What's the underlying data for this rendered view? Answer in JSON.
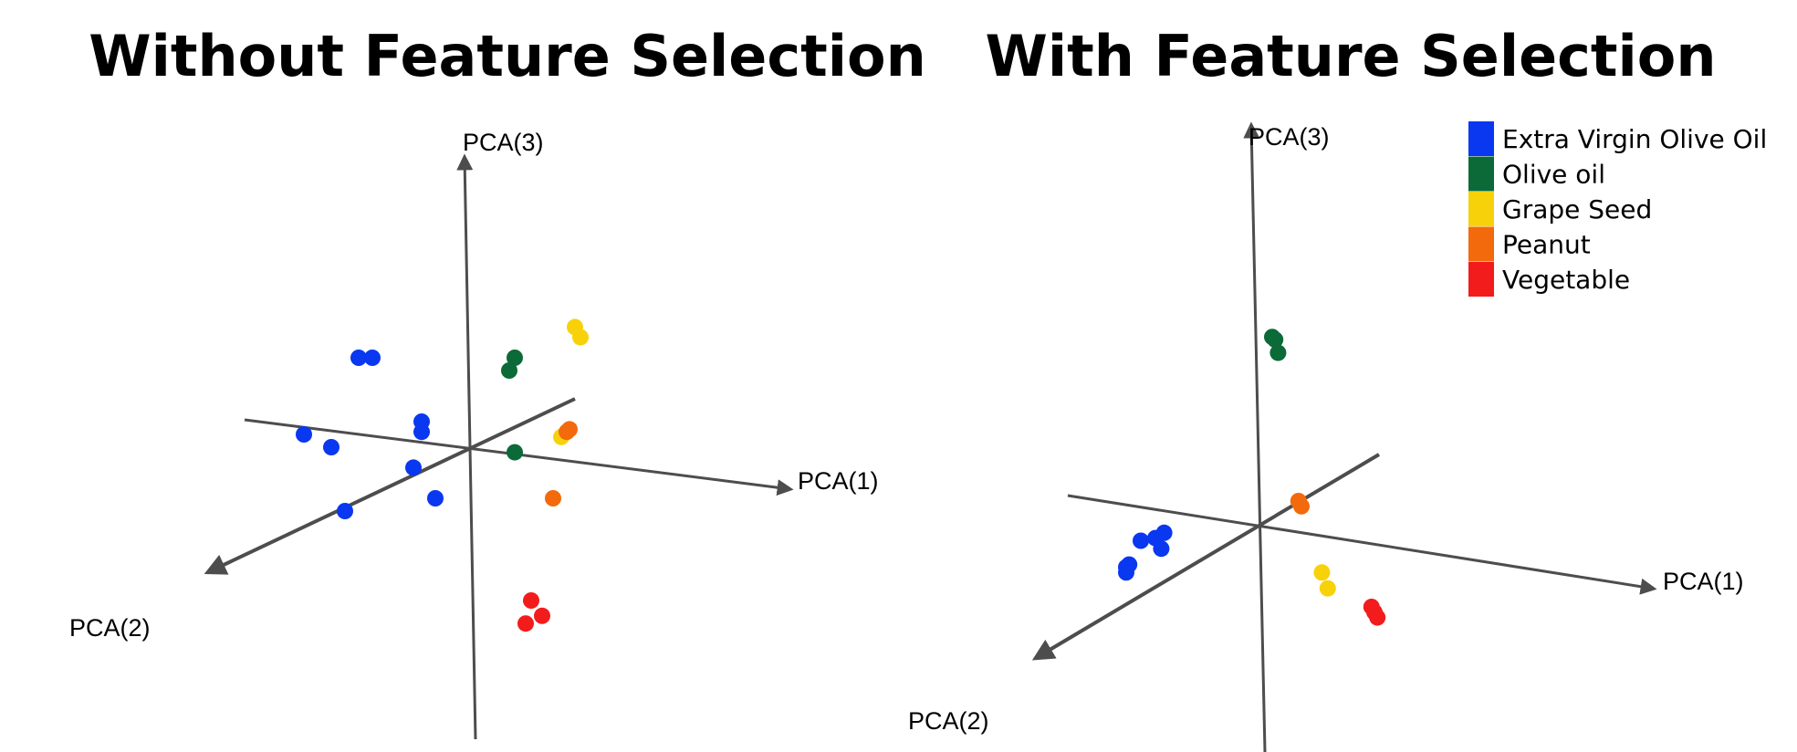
{
  "colors": {
    "Extra Virgin Olive Oil": "#0a37f0",
    "Olive oil": "#0b6a37",
    "Grape Seed": "#f7d20a",
    "Peanut": "#f26a0c",
    "Vegetable": "#f21c1c",
    "axis": "#4d4d4d"
  },
  "legend": [
    "Extra Virgin Olive Oil",
    "Olive oil",
    "Grape Seed",
    "Peanut",
    "Vegetable"
  ],
  "chart_data": [
    {
      "type": "scatter",
      "title": "Without Feature Selection",
      "axis_labels": [
        "PCA(1)",
        "PCA(2)",
        "PCA(3)"
      ],
      "series": [
        {
          "name": "Extra Virgin Olive Oil",
          "x": [
            -0.4,
            -0.35,
            -0.6,
            -0.5,
            -0.17,
            -0.17,
            -0.2,
            -0.45,
            -0.12
          ],
          "y": [
            0.35,
            0.35,
            0.05,
            0.0,
            0.1,
            0.06,
            -0.08,
            -0.25,
            -0.2
          ]
        },
        {
          "name": "Olive oil",
          "x": [
            0.17,
            0.15,
            0.17
          ],
          "y": [
            0.35,
            0.3,
            -0.02
          ]
        },
        {
          "name": "Grape Seed",
          "x": [
            0.39,
            0.41,
            0.34
          ],
          "y": [
            0.47,
            0.43,
            0.04
          ]
        },
        {
          "name": "Peanut",
          "x": [
            0.37,
            0.36,
            0.31
          ],
          "y": [
            0.07,
            0.06,
            -0.2
          ]
        },
        {
          "name": "Vegetable",
          "x": [
            0.23,
            0.27,
            0.21
          ],
          "y": [
            -0.6,
            -0.66,
            -0.69
          ]
        }
      ]
    },
    {
      "type": "scatter",
      "title": "With Feature Selection",
      "axis_labels": [
        "PCA(1)",
        "PCA(2)",
        "PCA(3)"
      ],
      "series": [
        {
          "name": "Extra Virgin Olive Oil",
          "x": [
            -0.4,
            -0.35,
            -0.32,
            -0.33,
            -0.45,
            -0.44,
            -0.45
          ],
          "y": [
            -0.05,
            -0.04,
            -0.02,
            -0.08,
            -0.15,
            -0.14,
            -0.17
          ]
        },
        {
          "name": "Olive oil",
          "x": [
            0.05,
            0.06,
            0.07
          ],
          "y": [
            0.72,
            0.71,
            0.66
          ]
        },
        {
          "name": "Grape Seed",
          "x": [
            0.22,
            0.24
          ],
          "y": [
            -0.17,
            -0.23
          ]
        },
        {
          "name": "Peanut",
          "x": [
            0.14,
            0.15
          ],
          "y": [
            0.1,
            0.08
          ]
        },
        {
          "name": "Vegetable",
          "x": [
            0.39,
            0.4,
            0.41
          ],
          "y": [
            -0.3,
            -0.32,
            -0.34
          ]
        }
      ]
    }
  ]
}
